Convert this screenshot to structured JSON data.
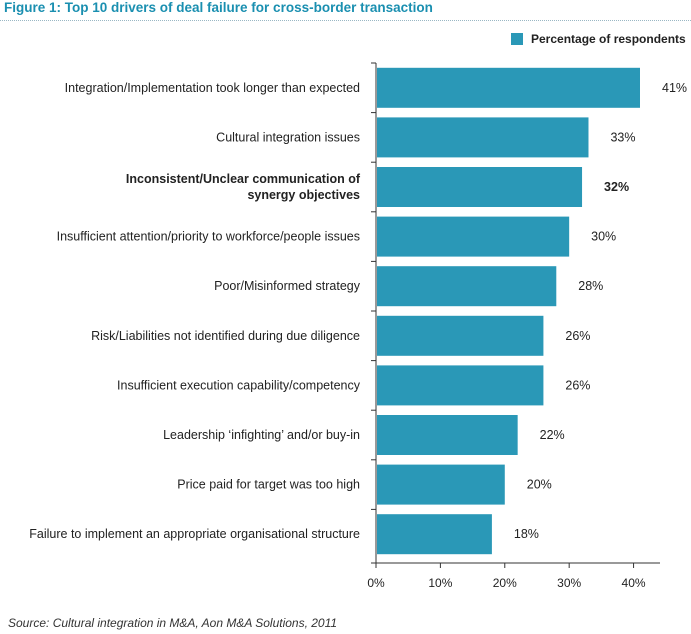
{
  "title": "Figure 1: Top 10 drivers of deal failure for cross-border transaction",
  "source": "Source: Cultural integration in M&A, Aon M&A Solutions, 2011",
  "colors": {
    "bar": "#2a98b7",
    "title": "#1a8fb0"
  },
  "chart_data": {
    "type": "bar",
    "orientation": "horizontal",
    "title": "Figure 1: Top 10 drivers of deal failure for cross-border transaction",
    "xlim": [
      0,
      41
    ],
    "ticks": [
      0,
      10,
      20,
      30,
      40
    ],
    "tick_labels": [
      "0%",
      "10%",
      "20%",
      "30%",
      "40%"
    ],
    "legend_position": "top-right",
    "grid": false,
    "series": [
      {
        "name": "Percentage of respondents",
        "color": "#2a98b7",
        "values": [
          41,
          33,
          32,
          30,
          28,
          26,
          26,
          22,
          20,
          18
        ]
      }
    ],
    "categories": [
      [
        "Integration/Implementation took longer than expected"
      ],
      [
        "Cultural integration issues"
      ],
      [
        "Inconsistent/Unclear communication of",
        "synergy objectives"
      ],
      [
        "Insufficient attention/priority to workforce/people issues"
      ],
      [
        "Poor/Misinformed strategy"
      ],
      [
        "Risk/Liabilities not identified during due diligence"
      ],
      [
        "Insufficient execution capability/competency"
      ],
      [
        "Leadership ‘infighting’ and/or buy-in"
      ],
      [
        "Price paid for target was too high"
      ],
      [
        "Failure to implement an appropriate organisational structure"
      ]
    ],
    "value_labels": [
      "41%",
      "33%",
      "32%",
      "30%",
      "28%",
      "26%",
      "26%",
      "22%",
      "20%",
      "18%"
    ],
    "highlighted_categories": [
      2
    ]
  }
}
